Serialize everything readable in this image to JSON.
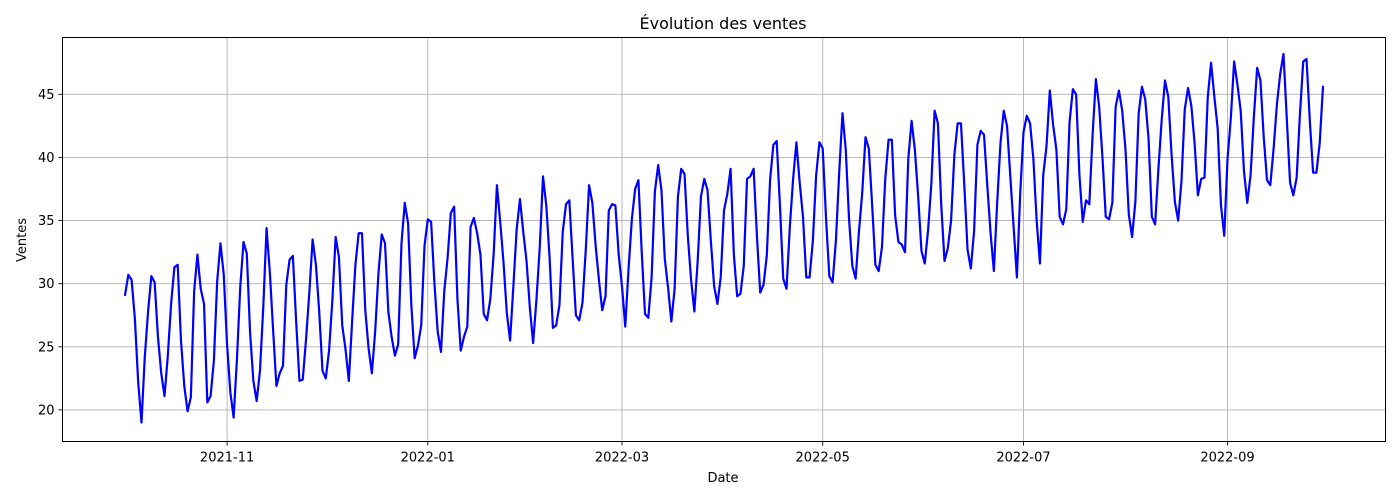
{
  "chart_data": {
    "type": "line",
    "title": "Évolution des ventes",
    "xlabel": "Date",
    "ylabel": "Ventes",
    "grid": true,
    "legend": "none",
    "x_start": "2021-10-01",
    "x_end": "2022-09-30",
    "xlim": [
      "2021-09-12",
      "2022-10-19"
    ],
    "ylim": [
      17.5,
      49.5
    ],
    "x_ticks": [
      {
        "date": "2021-11-01",
        "label": "2021-11"
      },
      {
        "date": "2022-01-01",
        "label": "2022-01"
      },
      {
        "date": "2022-03-01",
        "label": "2022-03"
      },
      {
        "date": "2022-05-01",
        "label": "2022-05"
      },
      {
        "date": "2022-07-01",
        "label": "2022-07"
      },
      {
        "date": "2022-09-01",
        "label": "2022-09"
      }
    ],
    "y_ticks": [
      20,
      25,
      30,
      35,
      40,
      45
    ],
    "series": [
      {
        "color": "#0000ff",
        "values": [
          29.1,
          30.7,
          30.3,
          27.2,
          22.2,
          19.0,
          24.2,
          27.8,
          30.6,
          30.1,
          25.8,
          22.9,
          21.1,
          24.3,
          28.4,
          31.3,
          31.5,
          25.5,
          21.9,
          19.9,
          21.0,
          29.4,
          32.3,
          29.6,
          28.4,
          20.6,
          21.1,
          23.9,
          30.2,
          33.2,
          30.7,
          25.2,
          21.4,
          19.4,
          24.0,
          29.7,
          33.3,
          32.4,
          26.1,
          22.3,
          20.7,
          23.1,
          28.1,
          34.4,
          30.9,
          26.3,
          21.9,
          22.9,
          23.5,
          29.9,
          31.9,
          32.2,
          27.0,
          22.3,
          22.4,
          25.6,
          29.3,
          33.5,
          31.5,
          27.8,
          23.1,
          22.5,
          24.7,
          28.7,
          33.7,
          32.1,
          26.7,
          24.8,
          22.3,
          27.0,
          31.5,
          34.0,
          34.0,
          27.9,
          24.9,
          22.9,
          26.2,
          30.8,
          33.9,
          33.2,
          27.8,
          25.8,
          24.3,
          25.2,
          33.2,
          36.4,
          34.8,
          28.3,
          24.1,
          25.1,
          26.7,
          33.0,
          35.1,
          34.9,
          30.1,
          26.2,
          24.6,
          29.4,
          32.0,
          35.6,
          36.1,
          28.8,
          24.7,
          25.8,
          26.6,
          34.5,
          35.2,
          34.0,
          32.3,
          27.6,
          27.1,
          28.8,
          32.3,
          37.8,
          34.9,
          31.7,
          27.7,
          25.5,
          29.8,
          34.3,
          36.7,
          34.1,
          31.8,
          28.1,
          25.3,
          28.7,
          32.8,
          38.5,
          36.2,
          32.1,
          26.5,
          26.7,
          28.3,
          34.1,
          36.3,
          36.6,
          32.0,
          27.5,
          27.1,
          28.5,
          32.7,
          37.8,
          36.4,
          33.0,
          30.3,
          27.9,
          29.0,
          35.8,
          36.3,
          36.2,
          32.3,
          29.8,
          26.6,
          31.2,
          35.1,
          37.5,
          38.2,
          32.5,
          27.6,
          27.3,
          30.5,
          37.3,
          39.4,
          37.4,
          32.0,
          29.7,
          27.0,
          29.6,
          36.9,
          39.1,
          38.7,
          33.8,
          30.3,
          27.8,
          31.8,
          36.9,
          38.3,
          37.4,
          33.4,
          29.8,
          28.4,
          30.5,
          35.8,
          37.1,
          39.1,
          32.3,
          29.0,
          29.2,
          31.4,
          38.3,
          38.5,
          39.1,
          33.8,
          29.3,
          29.9,
          32.2,
          38.2,
          41.0,
          41.3,
          36.2,
          30.4,
          29.6,
          34.5,
          38.3,
          41.2,
          38.0,
          35.3,
          30.5,
          30.5,
          33.4,
          38.6,
          41.2,
          40.7,
          35.2,
          30.6,
          30.1,
          33.4,
          38.8,
          43.5,
          40.6,
          35.1,
          31.4,
          30.4,
          34.1,
          37.2,
          41.6,
          40.7,
          36.3,
          31.5,
          31.0,
          32.9,
          38.3,
          41.4,
          41.4,
          35.4,
          33.3,
          33.1,
          32.5,
          39.9,
          42.9,
          40.6,
          36.9,
          32.6,
          31.6,
          34.2,
          37.9,
          43.7,
          42.7,
          36.3,
          31.8,
          32.8,
          35.0,
          40.2,
          42.7,
          42.7,
          37.9,
          32.7,
          31.2,
          34.2,
          41.0,
          42.1,
          41.8,
          37.8,
          34.0,
          31.0,
          36.4,
          41.1,
          43.7,
          42.5,
          38.5,
          34.5,
          30.5,
          37.1,
          42.0,
          43.3,
          42.7,
          39.9,
          35.0,
          31.6,
          38.6,
          40.9,
          45.3,
          42.6,
          40.6,
          35.3,
          34.7,
          35.9,
          42.8,
          45.4,
          45.0,
          38.6,
          34.9,
          36.6,
          36.3,
          41.8,
          46.2,
          44.0,
          40.0,
          35.3,
          35.1,
          36.4,
          44.0,
          45.3,
          43.7,
          40.6,
          35.5,
          33.7,
          36.5,
          43.5,
          45.6,
          44.6,
          41.5,
          35.3,
          34.7,
          39.1,
          43.0,
          46.1,
          44.8,
          40.2,
          36.5,
          35.0,
          38.1,
          43.8,
          45.5,
          44.1,
          41.1,
          37.0,
          38.3,
          38.4,
          44.8,
          47.5,
          44.8,
          42.3,
          36.2,
          33.8,
          39.9,
          43.1,
          47.6,
          45.8,
          43.7,
          38.9,
          36.4,
          38.6,
          43.2,
          47.1,
          46.1,
          41.6,
          38.2,
          37.8,
          40.7,
          44.2,
          46.6,
          48.2,
          43.1,
          38.0,
          37.0,
          38.4,
          43.4,
          47.6,
          47.8,
          42.9,
          38.8,
          38.8,
          41.1,
          45.6
        ]
      }
    ]
  }
}
